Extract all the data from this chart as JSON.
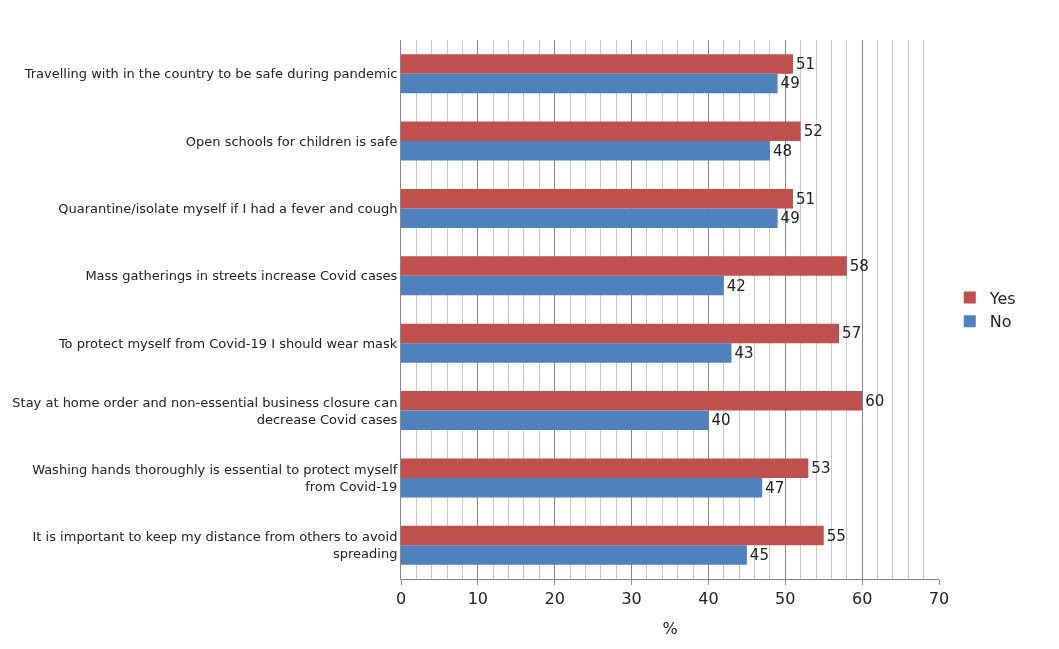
{
  "chart_data": {
    "type": "bar",
    "orientation": "horizontal",
    "xlabel": "%",
    "categories": [
      "Travelling with in the country to be safe during pandemic",
      "Open schools for children is safe",
      "Quarantine/isolate myself if I had a fever and cough",
      "Mass gatherings in streets increase Covid cases",
      "To protect myself from Covid-19 I should wear mask",
      "Stay at home order and non-essential business closure can decrease Covid cases",
      "Washing hands thoroughly is essential to protect myself from Covid-19",
      "It is important to keep my distance from others to avoid spreading"
    ],
    "series": [
      {
        "name": "Yes",
        "color": "#c0504d",
        "values": [
          51,
          52,
          51,
          58,
          57,
          60,
          53,
          55
        ]
      },
      {
        "name": "No",
        "color": "#4f81bd",
        "values": [
          49,
          48,
          49,
          42,
          43,
          40,
          47,
          45
        ]
      }
    ],
    "xlim": [
      0,
      70
    ],
    "xticks": [
      0,
      10,
      20,
      30,
      40,
      50,
      60,
      70
    ],
    "grid": "x",
    "legend": "right",
    "data_labels": true
  }
}
